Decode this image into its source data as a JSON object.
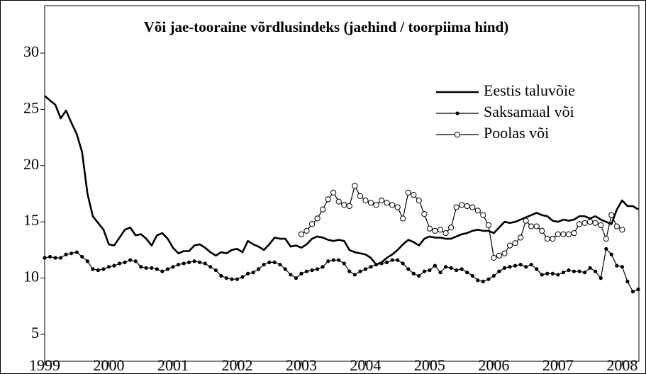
{
  "chart_data": {
    "type": "line",
    "title": "Või jae-tooraine võrdlusindeks (jaehind / toorpiima hind)",
    "x": [
      1999,
      1999.083,
      1999.167,
      1999.25,
      1999.333,
      1999.417,
      1999.5,
      1999.583,
      1999.667,
      1999.75,
      1999.833,
      1999.917,
      2000,
      2000.083,
      2000.167,
      2000.25,
      2000.333,
      2000.417,
      2000.5,
      2000.583,
      2000.667,
      2000.75,
      2000.833,
      2000.917,
      2001,
      2001.083,
      2001.167,
      2001.25,
      2001.333,
      2001.417,
      2001.5,
      2001.583,
      2001.667,
      2001.75,
      2001.833,
      2001.917,
      2002,
      2002.083,
      2002.167,
      2002.25,
      2002.333,
      2002.417,
      2002.5,
      2002.583,
      2002.667,
      2002.75,
      2002.833,
      2002.917,
      2003,
      2003.083,
      2003.167,
      2003.25,
      2003.333,
      2003.417,
      2003.5,
      2003.583,
      2003.667,
      2003.75,
      2003.833,
      2003.917,
      2004,
      2004.083,
      2004.167,
      2004.25,
      2004.333,
      2004.417,
      2004.5,
      2004.583,
      2004.667,
      2004.75,
      2004.833,
      2004.917,
      2005,
      2005.083,
      2005.167,
      2005.25,
      2005.333,
      2005.417,
      2005.5,
      2005.583,
      2005.667,
      2005.75,
      2005.833,
      2005.917,
      2006,
      2006.083,
      2006.167,
      2006.25,
      2006.333,
      2006.417,
      2006.5,
      2006.583,
      2006.667,
      2006.75,
      2006.833,
      2006.917,
      2007,
      2007.083,
      2007.167,
      2007.25,
      2007.333,
      2007.417,
      2007.5,
      2007.583,
      2007.667,
      2007.75,
      2007.833,
      2007.917,
      2008,
      2008.083,
      2008.167,
      2008.25
    ],
    "series": [
      {
        "name": "Eestis taluvõie",
        "color": "#000000",
        "marker": "none",
        "values": [
          26.2,
          25.8,
          25.4,
          24.2,
          24.9,
          23.8,
          22.8,
          21.2,
          17.5,
          15.5,
          14.9,
          14.3,
          13.0,
          12.9,
          13.6,
          14.3,
          14.5,
          13.8,
          13.9,
          13.5,
          12.9,
          13.8,
          14.0,
          13.5,
          12.7,
          12.2,
          12.4,
          12.4,
          12.9,
          13.0,
          12.7,
          12.3,
          12.0,
          12.3,
          12.2,
          12.5,
          12.6,
          12.3,
          13.3,
          13.0,
          12.8,
          12.5,
          13.0,
          13.6,
          13.5,
          13.5,
          12.8,
          12.9,
          12.7,
          13.0,
          13.5,
          13.7,
          13.6,
          13.4,
          13.3,
          13.4,
          13.3,
          12.5,
          12.3,
          12.2,
          12.1,
          11.8,
          11.2,
          11.4,
          11.8,
          12.1,
          12.5,
          13.0,
          13.4,
          13.2,
          12.9,
          13.5,
          13.7,
          13.6,
          13.6,
          13.5,
          13.5,
          13.7,
          13.9,
          14.0,
          14.2,
          14.3,
          14.2,
          14.2,
          14.0,
          14.5,
          15.0,
          14.9,
          15.0,
          15.2,
          15.4,
          15.6,
          15.8,
          15.6,
          15.5,
          15.1,
          15.0,
          15.2,
          15.1,
          15.2,
          15.5,
          15.5,
          15.3,
          15.5,
          15.2,
          15.0,
          14.8,
          16.1,
          16.9,
          16.4,
          16.4,
          16.1
        ]
      },
      {
        "name": "Saksamaal või",
        "color": "#000000",
        "marker": "filled",
        "values": [
          11.8,
          11.9,
          11.8,
          11.8,
          12.1,
          12.2,
          12.3,
          11.9,
          11.5,
          10.8,
          10.7,
          10.8,
          11.0,
          11.1,
          11.3,
          11.4,
          11.6,
          11.5,
          11.0,
          10.9,
          10.9,
          10.8,
          10.6,
          10.8,
          11.0,
          11.2,
          11.3,
          11.4,
          11.5,
          11.4,
          11.3,
          11.0,
          10.7,
          10.2,
          10.0,
          9.9,
          9.9,
          10.1,
          10.4,
          10.5,
          10.8,
          11.2,
          11.4,
          11.4,
          11.2,
          10.8,
          10.3,
          10.0,
          10.4,
          10.6,
          10.7,
          10.8,
          11.0,
          11.5,
          11.6,
          11.6,
          11.3,
          10.6,
          10.3,
          10.6,
          10.8,
          11.0,
          11.2,
          11.3,
          11.4,
          11.6,
          11.6,
          11.3,
          10.8,
          10.4,
          10.2,
          10.6,
          10.7,
          11.1,
          10.5,
          11.0,
          10.9,
          10.7,
          10.8,
          10.5,
          10.2,
          9.8,
          9.7,
          9.9,
          10.2,
          10.6,
          10.9,
          11.0,
          11.1,
          11.2,
          11.0,
          11.2,
          10.8,
          10.3,
          10.4,
          10.4,
          10.3,
          10.5,
          10.7,
          10.6,
          10.6,
          10.5,
          10.9,
          10.6,
          10.0,
          12.6,
          12.1,
          11.1,
          11.0,
          9.7,
          8.8,
          9.0
        ]
      },
      {
        "name": "Poolas või",
        "color": "#000000",
        "marker": "open",
        "values": [
          null,
          null,
          null,
          null,
          null,
          null,
          null,
          null,
          null,
          null,
          null,
          null,
          null,
          null,
          null,
          null,
          null,
          null,
          null,
          null,
          null,
          null,
          null,
          null,
          null,
          null,
          null,
          null,
          null,
          null,
          null,
          null,
          null,
          null,
          null,
          null,
          null,
          null,
          null,
          null,
          null,
          null,
          null,
          null,
          null,
          null,
          null,
          null,
          13.9,
          14.2,
          14.8,
          15.3,
          16.1,
          17.0,
          17.6,
          16.8,
          16.5,
          16.4,
          18.2,
          17.3,
          16.9,
          16.7,
          16.5,
          16.9,
          16.7,
          16.5,
          16.3,
          15.3,
          17.6,
          17.4,
          16.9,
          15.7,
          14.4,
          14.2,
          14.3,
          14.0,
          14.5,
          16.3,
          16.5,
          16.4,
          16.3,
          16.0,
          15.6,
          14.7,
          11.8,
          12.0,
          12.2,
          12.9,
          13.1,
          13.6,
          15.1,
          14.6,
          14.6,
          14.2,
          13.5,
          13.5,
          13.9,
          13.9,
          13.9,
          14.0,
          14.8,
          14.9,
          15.0,
          14.9,
          14.7,
          13.5,
          15.6,
          14.6,
          14.3,
          null,
          null,
          null
        ]
      }
    ],
    "xlim": [
      1999,
      2008.25
    ],
    "xticks": [
      1999,
      2000,
      2001,
      2002,
      2003,
      2004,
      2005,
      2006,
      2007,
      2008
    ],
    "ylim": [
      5,
      30
    ],
    "yticks": [
      5,
      10,
      15,
      20,
      25,
      30
    ],
    "grid": false,
    "legend": "top-right"
  }
}
